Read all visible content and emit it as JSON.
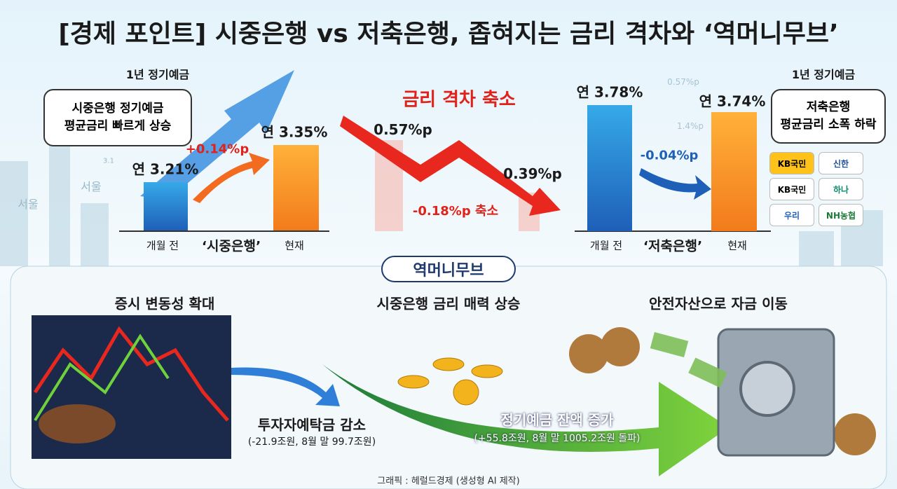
{
  "title": "[경제 포인트] 시중은행 vs 저축은행, 좁혀지는 금리 격차와 ‘역머니무브’",
  "background_labels": [
    "서울",
    "서울",
    "3.1",
    "0.57%p",
    "1.4%p"
  ],
  "commercial": {
    "label": "1년 정기예금",
    "bubble": [
      "시중은행 정기예금",
      "평균금리 빠르게 상승"
    ],
    "before": "연 3.21%",
    "change": "+0.14%p",
    "now": "연 3.35%",
    "axis": [
      "개월 전",
      "‘시중은행’",
      "현재"
    ]
  },
  "gap": {
    "title": "금리 격차 축소",
    "start": "0.57%p",
    "end": "0.39%p",
    "change": "-0.18%p 축소"
  },
  "savings": {
    "label": "1년 정기예금",
    "bubble": [
      "저축은행",
      "평균금리 소폭 하락"
    ],
    "before": "연 3.78%",
    "change": "-0.04%p",
    "now": "연 3.74%",
    "axis": [
      "개월 전",
      "‘저축은행’",
      "현재"
    ]
  },
  "banks": [
    "KB국민",
    "신한",
    "KB국민",
    "하나",
    "우리",
    "NH농협"
  ],
  "move": {
    "badge": "역머니무브",
    "steps": [
      "증시 변동성 확대",
      "시중은행 금리 매력 상승",
      "안전자산으로 자금 이동"
    ],
    "outflow": {
      "title": "투자자예탁금 감소",
      "detail": "(-21.9조원, 8월 말 99.7조원)"
    },
    "inflow": {
      "title": "정기예금 잔액 증가",
      "detail": "(+55.8조원, 8월 말 1005.2조원 돌파)"
    }
  },
  "credit": "그래픽 : 헤럴드경제 (생성형 AI 제작)"
}
